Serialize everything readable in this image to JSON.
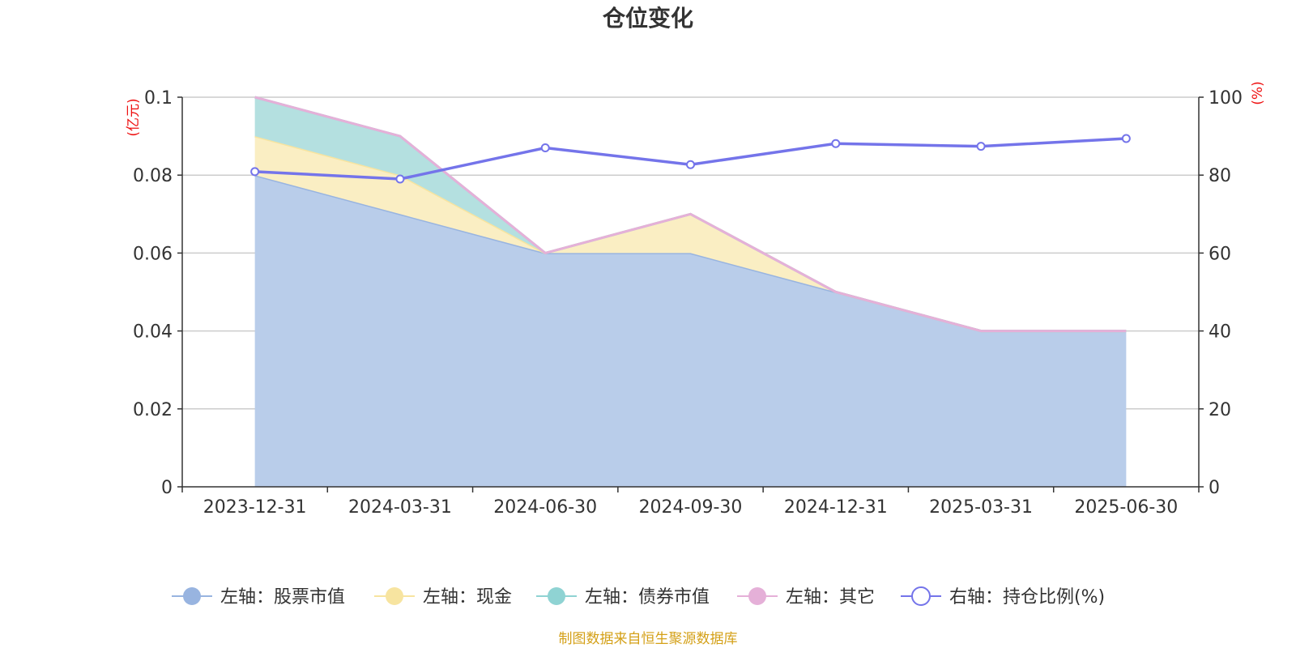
{
  "chart_data": {
    "type": "area",
    "title": "仓位变化",
    "categories": [
      "2023-12-31",
      "2024-03-31",
      "2024-06-30",
      "2024-09-30",
      "2024-12-31",
      "2025-03-31",
      "2025-06-30"
    ],
    "y_left": {
      "unit": "(亿元)",
      "ylim": [
        0,
        0.1
      ],
      "ticks": [
        "0",
        "0.02",
        "0.04",
        "0.06",
        "0.08",
        "0.1"
      ]
    },
    "y_right": {
      "unit": "(%)",
      "ylim": [
        0,
        100
      ],
      "ticks": [
        "0",
        "20",
        "40",
        "60",
        "80",
        "100"
      ]
    },
    "grid": true,
    "legend_position": "bottom",
    "series": [
      {
        "name": "左轴：股票市值",
        "axis": "left",
        "type": "stacked-area",
        "color": "#98b4e0",
        "fill": "#b9cdea",
        "values": [
          0.08,
          0.07,
          0.06,
          0.06,
          0.05,
          0.04,
          0.04
        ]
      },
      {
        "name": "左轴：现金",
        "axis": "left",
        "type": "stacked-area",
        "color": "#f7e4a0",
        "fill": "#faeec3",
        "values": [
          0.01,
          0.01,
          0.0,
          0.01,
          0.0,
          0.0,
          0.0
        ]
      },
      {
        "name": "左轴：债券市值",
        "axis": "left",
        "type": "stacked-area",
        "color": "#8fd3d3",
        "fill": "#b4e0e0",
        "values": [
          0.01,
          0.01,
          0.0,
          0.0,
          0.0,
          0.0,
          0.0
        ]
      },
      {
        "name": "左轴：其它",
        "axis": "left",
        "type": "stacked-area",
        "color": "#e5b0d8",
        "fill": "#f0cfe6",
        "values": [
          0.0,
          0.0,
          0.0,
          0.0,
          0.0,
          0.0,
          0.0
        ]
      },
      {
        "name": "右轴：持仓比例(%)",
        "axis": "right",
        "type": "line",
        "color": "#7474ea",
        "values": [
          80.9,
          79.0,
          87.0,
          82.7,
          88.1,
          87.4,
          89.4
        ]
      }
    ]
  },
  "source": "制图数据来自恒生聚源数据库"
}
